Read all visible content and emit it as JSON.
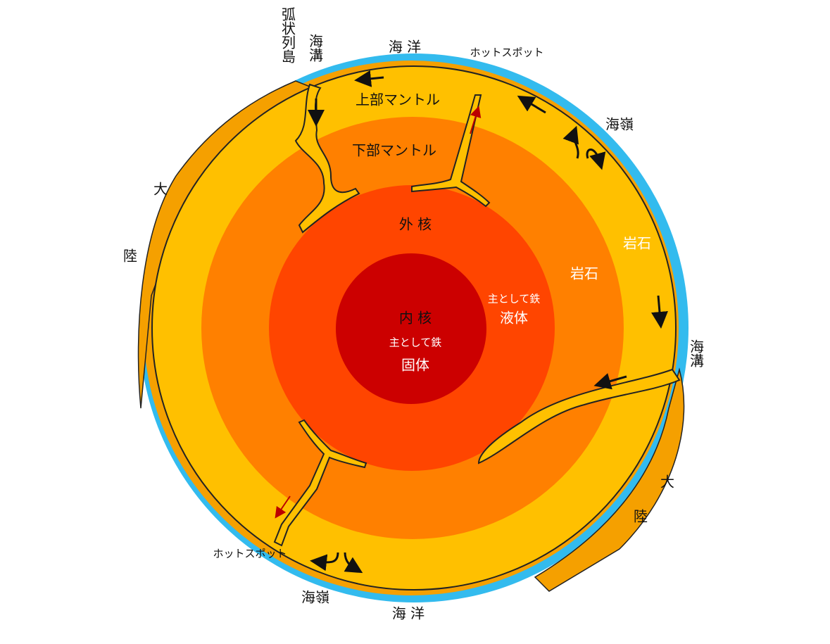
{
  "title_labels": {
    "island_arc": "弧状列島",
    "trench_top": "海溝",
    "ocean_top": "海 洋",
    "hotspot_top": "ホットスポット",
    "upper_mantle": "上部マントル",
    "ridge_right": "海嶺",
    "lower_mantle": "下部マントル",
    "continent_left_1": "大",
    "continent_left_2": "陸",
    "outer_core": "外 核",
    "rock_upper": "岩石",
    "rock_lower": "岩石",
    "outer_core_material": "主として鉄",
    "outer_core_state": "液体",
    "inner_core": "内 核",
    "inner_core_material": "主として鉄",
    "inner_core_state": "固体",
    "trench_right": "海溝",
    "continent_right_1": "大",
    "continent_right_2": "陸",
    "hotspot_bottom": "ホットスポット",
    "ridge_bottom": "海嶺",
    "ocean_bottom": "海 洋"
  }
}
